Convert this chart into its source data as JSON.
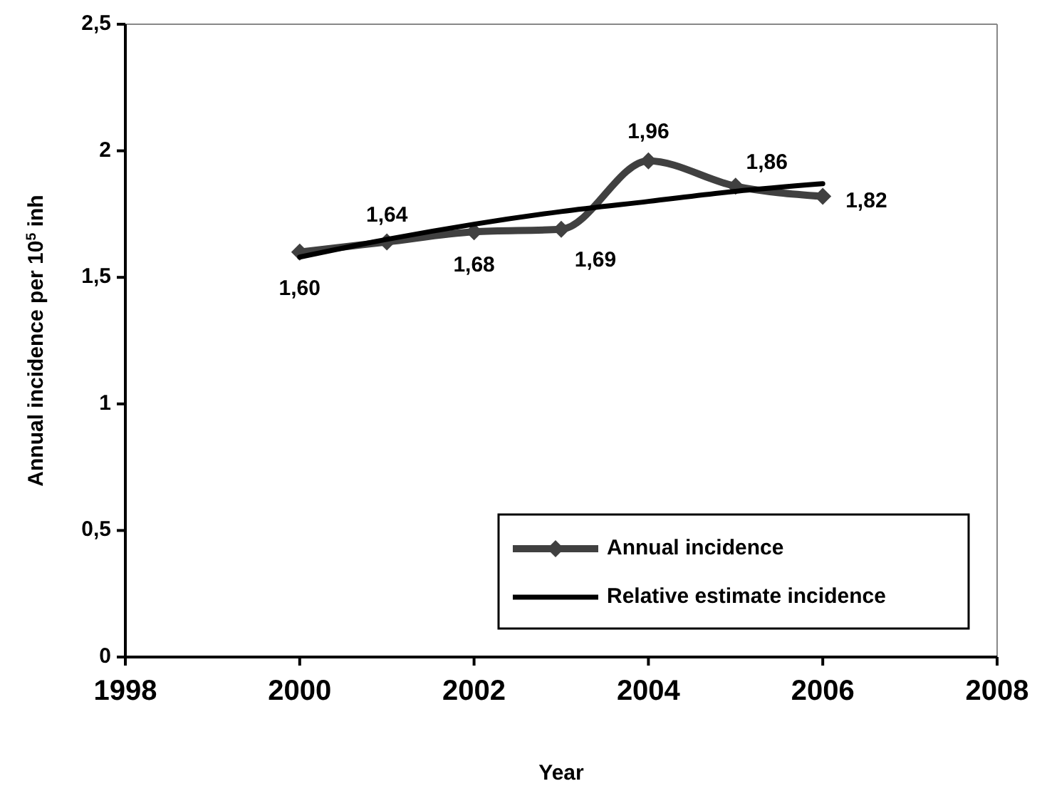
{
  "chart_data": {
    "type": "line",
    "xlabel": "Year",
    "ylabel": "Annual incidence per 10$^{5}$ inh",
    "x": [
      2000,
      2001,
      2002,
      2003,
      2004,
      2005,
      2006
    ],
    "series": [
      {
        "name": "Annual incidence",
        "color": "#404040",
        "values": [
          1.6,
          1.64,
          1.68,
          1.69,
          1.96,
          1.86,
          1.82
        ],
        "marker": "diamond",
        "value_labels": [
          "1,60",
          "1,64",
          "1,68",
          "1,69",
          "1,96",
          "1,86",
          "1,82"
        ]
      },
      {
        "name": "Relative estimate incidence",
        "color": "#000000",
        "values": [
          1.58,
          1.65,
          1.71,
          1.76,
          1.8,
          1.84,
          1.87
        ],
        "marker": "none"
      }
    ],
    "xlim": [
      1998,
      2008
    ],
    "xticks": [
      1998,
      2000,
      2002,
      2004,
      2006,
      2008
    ],
    "ylim": [
      0,
      2.5
    ],
    "yticks": [
      0,
      {
        "value": 0.5,
        "label": "0,5"
      },
      1,
      {
        "value": 1.5,
        "label": "1,5"
      },
      2,
      {
        "value": 2.5,
        "label": "2,5"
      }
    ],
    "legend": "bottom right",
    "grid": false
  }
}
